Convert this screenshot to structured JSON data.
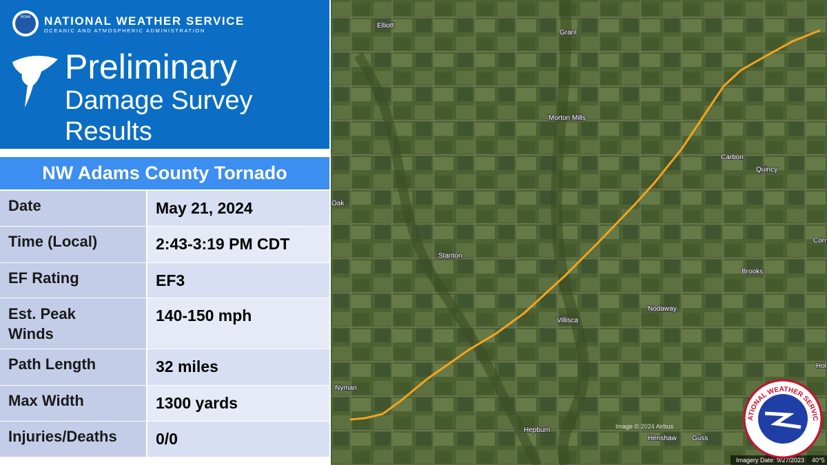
{
  "header": {
    "agency": "NATIONAL WEATHER SERVICE",
    "agency_subtitle": "OCEANIC AND ATMOSPHERIC ADMINISTRATION",
    "noaa_logo": "NOAA",
    "title_lines": [
      "Preliminary",
      "Damage Survey",
      "Results"
    ]
  },
  "table": {
    "title": "NW Adams County Tornado",
    "rows": [
      [
        "Date",
        "May 21, 2024"
      ],
      [
        "Time (Local)",
        "2:43-3:19 PM CDT"
      ],
      [
        "EF Rating",
        "EF3"
      ],
      [
        "Est. Peak Winds",
        "140-150 mph"
      ],
      [
        "Path Length",
        "32 miles"
      ],
      [
        "Max Width",
        "1300 yards"
      ],
      [
        "Injuries/Deaths",
        "0/0"
      ]
    ]
  },
  "map": {
    "places": [
      "Elliott",
      "Grant",
      "Morton Mills",
      "Carbon",
      "Quincy",
      "Oak",
      "Stanton",
      "Brooks",
      "Nodaway",
      "Villisca",
      "Nyman",
      "Hepburn",
      "Henshaw",
      "Guss",
      "Corn",
      "Hol"
    ],
    "credit": "Image © 2024 Airbus",
    "imagery_date": "Imagery Date: 9/27/2023",
    "coords": "40°5",
    "nws_logo_text": "NATIONAL WEATHER SERVICE"
  }
}
